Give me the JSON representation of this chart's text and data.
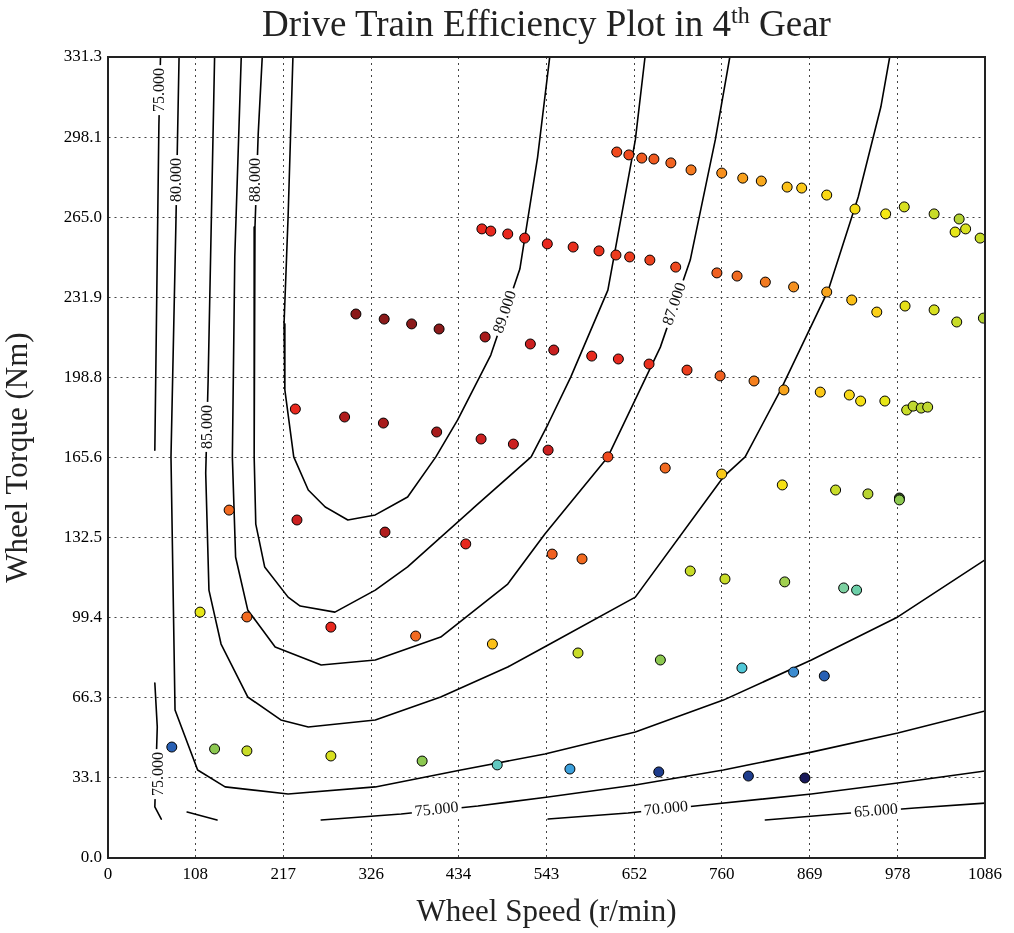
{
  "chart_data": {
    "type": "scatter",
    "title": "Drive Train Efficiency Plot in 4$^{th}$ Gear",
    "xlabel": "Wheel Speed (r/min)",
    "ylabel": "Wheel Torque (Nm)",
    "xlim": [
      0,
      1086
    ],
    "ylim": [
      0,
      331.3
    ],
    "xticks": [
      0,
      108,
      217,
      326,
      434,
      543,
      652,
      760,
      869,
      978,
      1086
    ],
    "yticks": [
      {
        "value": 0,
        "label": "0.0"
      },
      33.1,
      66.3,
      99.4,
      132.5,
      165.6,
      198.8,
      231.9,
      {
        "value": 265,
        "label": "265.0"
      },
      298.1,
      331.3
    ],
    "grid": true,
    "annotations": [
      {
        "text": "75.000",
        "x": 64,
        "y": 317.6
      },
      {
        "text": "80.000",
        "x": 85,
        "y": 280.4
      },
      {
        "text": "88.000",
        "x": 183,
        "y": 280.4
      },
      {
        "text": "85.000",
        "x": 123,
        "y": 178.3
      },
      {
        "text": "89.000",
        "x": 492,
        "y": 225.8
      },
      {
        "text": "87.000",
        "x": 702,
        "y": 229.1
      },
      {
        "text": "75.000",
        "x": 63,
        "y": 34.7
      },
      {
        "text": "75.000",
        "x": 407,
        "y": 19.9
      },
      {
        "text": "70.000",
        "x": 691,
        "y": 20.3
      },
      {
        "text": "65.000",
        "x": 951,
        "y": 19.4
      }
    ],
    "series": [
      {
        "marker": "circle",
        "x": [
          630,
          645,
          661,
          676,
          697,
          722,
          760,
          786,
          809,
          841,
          859,
          890,
          925,
          963,
          986,
          1023,
          1054,
          1049,
          1062,
          1080,
          463,
          474,
          495,
          516,
          544,
          576,
          608,
          629,
          646,
          671,
          703,
          754,
          779,
          814,
          849,
          890,
          921,
          952,
          987,
          1023,
          1051,
          1084,
          307,
          342,
          376,
          410,
          467,
          523,
          552,
          599,
          632,
          670,
          717,
          758,
          800,
          837,
          882,
          918,
          932,
          962,
          989,
          997,
          1007,
          1015,
          232,
          293,
          341,
          407,
          462,
          502,
          545,
          619,
          690,
          760,
          835,
          901,
          941,
          980,
          980,
          150,
          234,
          343,
          443,
          550,
          587,
          721,
          764,
          838,
          911,
          927,
          114,
          172,
          276,
          381,
          476,
          582,
          684,
          785,
          849,
          887,
          79,
          132,
          172,
          276,
          389,
          482,
          572,
          682,
          793,
          863
        ],
        "values": [
          292.0,
          290.8,
          289.5,
          289.1,
          287.5,
          284.6,
          283.3,
          281.2,
          280.0,
          277.5,
          277.1,
          274.2,
          268.4,
          266.4,
          269.3,
          266.4,
          264.3,
          258.9,
          260.2,
          256.4,
          260.2,
          259.3,
          258.1,
          256.4,
          254.0,
          252.7,
          251.1,
          249.4,
          248.6,
          247.3,
          244.4,
          242.0,
          240.7,
          238.2,
          236.2,
          234.1,
          230.8,
          225.8,
          228.3,
          226.7,
          221.7,
          223.3,
          225.0,
          222.9,
          220.9,
          218.8,
          215.5,
          212.6,
          210.1,
          207.6,
          206.4,
          204.3,
          201.8,
          199.4,
          197.3,
          193.6,
          192.7,
          191.5,
          189.0,
          189.0,
          185.3,
          186.9,
          186.1,
          186.5,
          185.7,
          182.4,
          179.9,
          176.2,
          173.3,
          171.2,
          168.7,
          165.9,
          161.3,
          158.8,
          154.3,
          152.2,
          150.6,
          148.9,
          148.1,
          143.9,
          139.8,
          134.8,
          129.9,
          125.7,
          123.7,
          118.7,
          115.4,
          114.2,
          111.7,
          110.8,
          101.7,
          99.7,
          95.5,
          91.8,
          88.5,
          84.8,
          81.9,
          78.6,
          76.9,
          75.3,
          45.9,
          45.1,
          44.3,
          42.2,
          40.1,
          38.5,
          36.8,
          35.6,
          33.9,
          33.1
        ],
        "colors": [
          "#f04a1e",
          "#f04a1e",
          "#f05a20",
          "#f05a20",
          "#f26422",
          "#f57a20",
          "#f7901e",
          "#f8a01c",
          "#f8a81c",
          "#fbc018",
          "#fbc818",
          "#fad814",
          "#f5dc14",
          "#f5e814",
          "#d8e020",
          "#c8dc28",
          "#b4d232",
          "#e6e618",
          "#d8e020",
          "#c8dc28",
          "#e8281e",
          "#e8281e",
          "#e8281e",
          "#e8281e",
          "#e8281e",
          "#e8301e",
          "#ea321e",
          "#ec3c1e",
          "#ec3c1e",
          "#ec421e",
          "#ee4a20",
          "#f06020",
          "#f06a20",
          "#f27a20",
          "#f49020",
          "#f8a41c",
          "#fbc018",
          "#fbd018",
          "#e6e018",
          "#d8e020",
          "#c8dc28",
          "#b4d232",
          "#8b1a1a",
          "#8b1a1a",
          "#8b1a1a",
          "#8b1a1a",
          "#a81c1c",
          "#cc2020",
          "#c82020",
          "#e82a1e",
          "#e8281e",
          "#ea301e",
          "#ec3e1e",
          "#f06020",
          "#f5801e",
          "#f8a41c",
          "#fbc818",
          "#f8d818",
          "#f5e014",
          "#e6e618",
          "#c8dc28",
          "#c0d830",
          "#b8d432",
          "#c0d830",
          "#e8281e",
          "#b01c1c",
          "#a81c1c",
          "#a81c1c",
          "#cc2020",
          "#cc2020",
          "#cc2020",
          "#f04a1e",
          "#f26a20",
          "#f8c818",
          "#f5e014",
          "#c8dc28",
          "#b8d432",
          "#3c5a28",
          "#8cc850",
          "#f26a20",
          "#cc2020",
          "#b01c1c",
          "#e8281e",
          "#f06020",
          "#f26a20",
          "#c8dc28",
          "#c8dc28",
          "#a0d050",
          "#7cd0a0",
          "#6ccfa8",
          "#e6e618",
          "#f26a20",
          "#e8281e",
          "#f26a20",
          "#fbc018",
          "#c8dc28",
          "#8cc850",
          "#50c8d8",
          "#3c8cd0",
          "#2860b4",
          "#2860b4",
          "#8cc850",
          "#c8dc28",
          "#d8e020",
          "#8cc850",
          "#60c8c0",
          "#3ca0dc",
          "#1e3c8c",
          "#1e3c8c",
          "#1a1a5a"
        ]
      },
      {
        "type": "line",
        "color": "#000000",
        "marker": "none",
        "line_style": "solid",
        "x": [
          229,
          223,
          218,
          219,
          230,
          248,
          269,
          297,
          331,
          371,
          406,
          433,
          474,
          510,
          532,
          547
        ],
        "values": [
          331.3,
          265.1,
          220.9,
          193.6,
          165.9,
          152.2,
          145.2,
          139.8,
          141.9,
          149.3,
          165.9,
          181.2,
          208.0,
          243.6,
          289.9,
          331.3
        ]
      },
      {
        "type": "line",
        "color": "#000000",
        "marker": "none",
        "line_style": "solid",
        "x": [
          191,
          186,
          182,
          181,
          183,
          194,
          223,
          238,
          281,
          331,
          371,
          454,
          524,
          545,
          573,
          619,
          653,
          665
        ],
        "values": [
          331.3,
          299.4,
          261.0,
          165.9,
          138.1,
          120.4,
          107.9,
          104.2,
          101.7,
          110.8,
          120.4,
          145.2,
          165.9,
          179.5,
          198.9,
          234.9,
          297.0,
          331.3
        ]
      },
      {
        "type": "line",
        "color": "#000000",
        "marker": "none",
        "line_style": "solid",
        "x": [
          165,
          157,
          154,
          158,
          173,
          207,
          264,
          331,
          412,
          495,
          541,
          619,
          684,
          721,
          752,
          770
        ],
        "values": [
          331.3,
          248.6,
          165.9,
          124.5,
          102.6,
          87.3,
          79.8,
          81.9,
          91.4,
          113.3,
          134.0,
          165.9,
          211.3,
          247.3,
          297.0,
          331.3
        ]
      },
      {
        "type": "line",
        "color": "#000000",
        "marker": "none",
        "line_style": "solid",
        "x": [
          132,
          124,
          121,
          125,
          140,
          173,
          214,
          248,
          331,
          412,
          495,
          545,
          653,
          762,
          789,
          833,
          892,
          929,
          957,
          968
        ],
        "values": [
          331.3,
          197.7,
          159.2,
          110.8,
          88.5,
          66.6,
          57.1,
          54.2,
          57.1,
          66.6,
          79.0,
          88.1,
          107.9,
          157.6,
          165.9,
          193.6,
          234.9,
          273.4,
          310.6,
          331.3
        ]
      },
      {
        "type": "line",
        "color": "#000000",
        "marker": "none",
        "line_style": "solid",
        "x": [
          88,
          84,
          78,
          83,
          111,
          145,
          223,
          331,
          437,
          541,
          653,
          762,
          871,
          978,
          1086
        ],
        "values": [
          331.3,
          261.0,
          165.9,
          61.2,
          36.4,
          29.4,
          26.5,
          29.4,
          36.4,
          43.0,
          52.1,
          65.3,
          81.9,
          99.7,
          123.3
        ]
      },
      {
        "type": "line",
        "color": "#000000",
        "marker": "none",
        "line_style": "solid",
        "x": [
          65,
          63,
          58
        ],
        "values": [
          331.3,
          302.8,
          168.7
        ]
      },
      {
        "type": "line",
        "color": "#000000",
        "marker": "none",
        "line_style": "solid",
        "x": [
          58,
          61,
          58,
          66
        ],
        "values": [
          72.4,
          54.2,
          21.1,
          16.1
        ]
      },
      {
        "type": "line",
        "color": "#000000",
        "marker": "none",
        "line_style": "solid",
        "x": [
          98,
          135
        ],
        "values": [
          19.0,
          15.7
        ]
      },
      {
        "type": "line",
        "color": "#000000",
        "marker": "none",
        "line_style": "solid",
        "x": [
          264,
          363,
          458,
          545,
          653,
          762,
          871,
          978,
          1086
        ],
        "values": [
          15.7,
          18.2,
          21.5,
          25.2,
          30.2,
          36.4,
          43.8,
          51.7,
          60.8
        ]
      },
      {
        "type": "line",
        "color": "#000000",
        "marker": "none",
        "line_style": "solid",
        "x": [
          545,
          644,
          739,
          871,
          978,
          1086
        ],
        "values": [
          16.1,
          18.6,
          21.9,
          26.5,
          31.0,
          36.0
        ]
      },
      {
        "type": "line",
        "color": "#000000",
        "marker": "none",
        "line_style": "solid",
        "x": [
          814,
          904,
          999,
          1086
        ],
        "values": [
          15.7,
          18.2,
          20.7,
          22.7
        ]
      }
    ]
  }
}
